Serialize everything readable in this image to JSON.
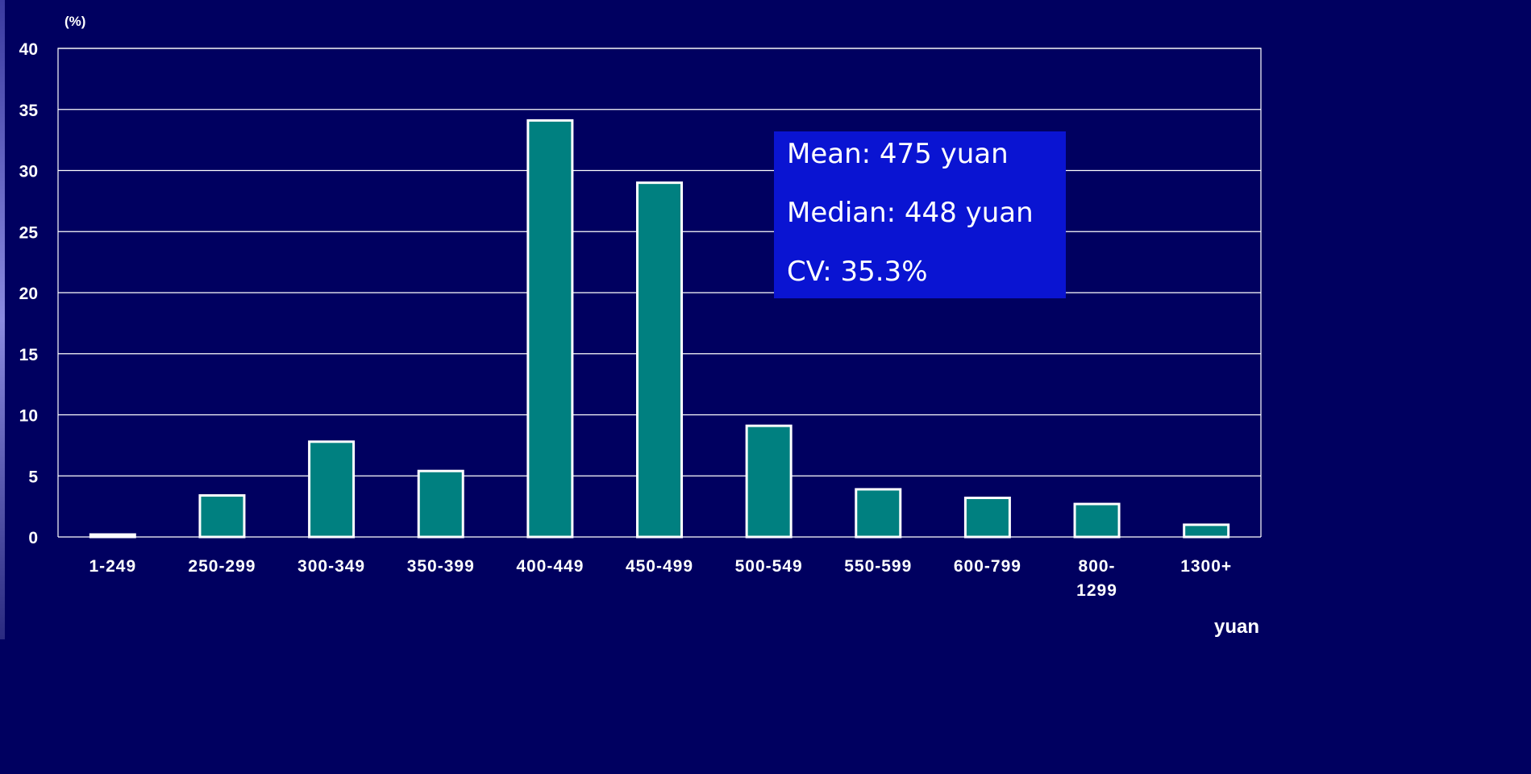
{
  "chart_data": {
    "type": "bar",
    "categories": [
      "1-249",
      "250-299",
      "300-349",
      "350-399",
      "400-449",
      "450-499",
      "500-549",
      "550-599",
      "600-799",
      "800-\n1299",
      "1300+"
    ],
    "values": [
      0.2,
      3.4,
      7.8,
      5.4,
      34.1,
      29.0,
      9.1,
      3.9,
      3.2,
      2.7,
      1.0
    ],
    "ylabel": "(%)",
    "xlabel": "yuan",
    "ylim": [
      0,
      40
    ],
    "yticks": [
      0,
      5,
      10,
      15,
      20,
      25,
      30,
      35,
      40
    ],
    "grid": true,
    "bar_color": "#008080",
    "bar_edge_color": "#ffffff",
    "background_color": "#000060",
    "annotation": {
      "lines": [
        "Mean: 475 yuan",
        "Median: 448 yuan",
        "CV: 35.3%"
      ],
      "background_color": "#0a14d2"
    }
  }
}
